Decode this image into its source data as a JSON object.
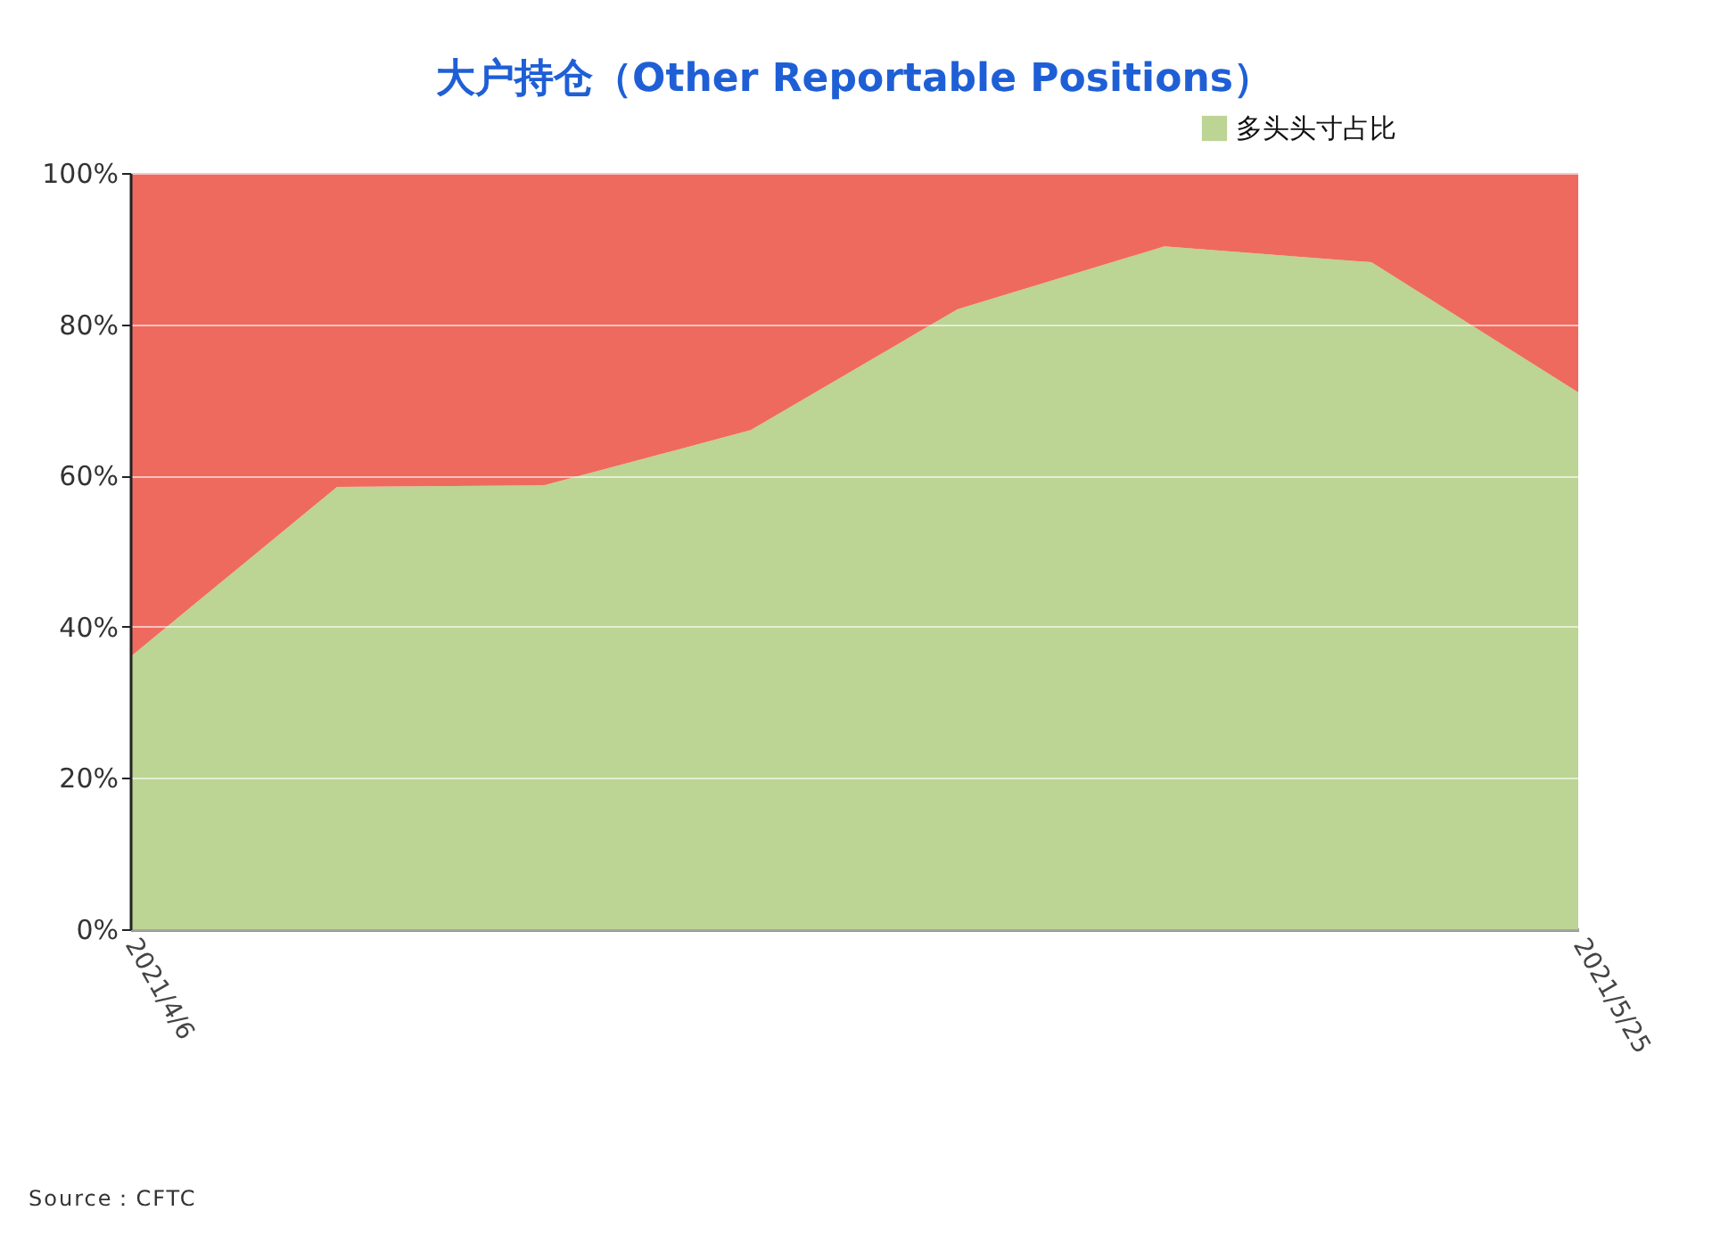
{
  "chart_data": {
    "type": "area",
    "stacked": true,
    "title": "大户持仓（Other Reportable Positions）",
    "categories": [
      "2021/4/6",
      null,
      null,
      null,
      null,
      null,
      null,
      "2021/5/25"
    ],
    "series": [
      {
        "name": "多头头寸占比",
        "color": "#bcd494",
        "values": [
          36,
          58.5,
          58.7,
          66,
          82,
          90.3,
          88.2,
          71
        ]
      },
      {
        "color": "#ee6a5f",
        "values": [
          64,
          41.5,
          41.3,
          34,
          18,
          9.7,
          11.8,
          29
        ]
      }
    ],
    "ylim": [
      0,
      100
    ],
    "yticks": [
      {
        "value": 0,
        "label": "0%"
      },
      {
        "value": 20,
        "label": "20%"
      },
      {
        "value": 40,
        "label": "40%"
      },
      {
        "value": 60,
        "label": "60%"
      },
      {
        "value": 80,
        "label": "80%"
      },
      {
        "value": 100,
        "label": "100%"
      }
    ],
    "grid": "y",
    "legend": "top right",
    "annotations": [
      "Source：CFTC"
    ]
  }
}
